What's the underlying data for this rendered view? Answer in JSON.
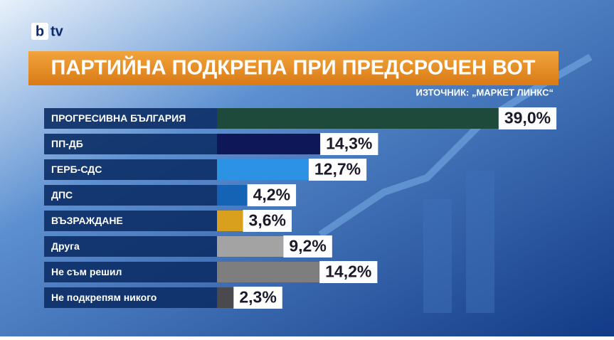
{
  "brand": {
    "mark": "b",
    "name": "tv"
  },
  "chart_data": {
    "type": "bar",
    "orientation": "horizontal",
    "title": "ПАРТИЙНА ПОДКРЕПА ПРИ ПРЕДСРОЧЕН ВОТ",
    "source": "ИЗТОЧНИК: „МАРКЕТ ЛИНКС“",
    "categories": [
      "ПРОГРЕСИВНА БЪЛГАРИЯ",
      "ПП-ДБ",
      "ГЕРБ-СДС",
      "ДПС",
      "ВЪЗРАЖДАНЕ",
      "Друга",
      "Не съм решил",
      "Не подкрепям никого"
    ],
    "values": [
      39.0,
      14.3,
      12.7,
      4.2,
      3.6,
      9.2,
      14.2,
      2.3
    ],
    "value_labels": [
      "39,0%",
      "14,3%",
      "12,7%",
      "4,2%",
      "3,6%",
      "9,2%",
      "14,2%",
      "2,3%"
    ],
    "colors": [
      "#1d4a3a",
      "#0e1858",
      "#2b92e4",
      "#1463b4",
      "#d8a01c",
      "#a3a3a3",
      "#7e7e7e",
      "#4a4a4e"
    ]
  }
}
